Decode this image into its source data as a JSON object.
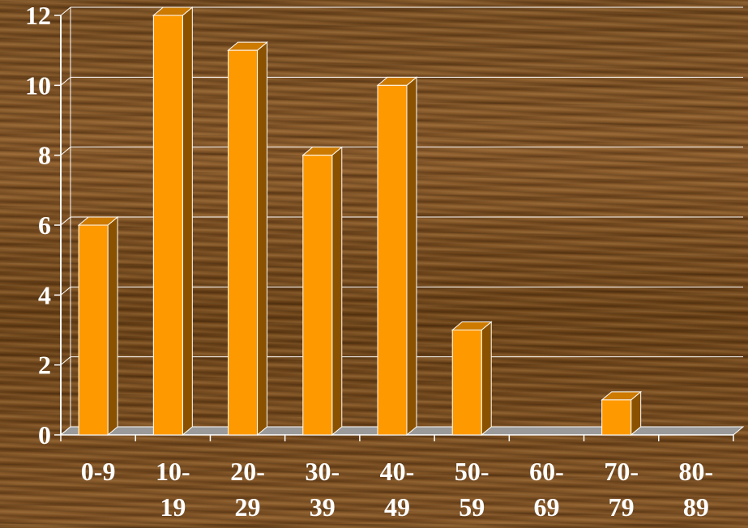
{
  "chart_data": {
    "type": "bar",
    "categories": [
      [
        "0-9"
      ],
      [
        "10-",
        "19"
      ],
      [
        "20-",
        "29"
      ],
      [
        "30-",
        "39"
      ],
      [
        "40-",
        "49"
      ],
      [
        "50-",
        "59"
      ],
      [
        "60-",
        "69"
      ],
      [
        "70-",
        "79"
      ],
      [
        "80-",
        "89"
      ]
    ],
    "values": [
      6,
      12,
      11,
      8,
      10,
      3,
      0,
      1,
      0
    ],
    "ylim": [
      0,
      12
    ],
    "yticks": [
      "0",
      "2",
      "4",
      "6",
      "8",
      "10",
      "12"
    ],
    "grid": true,
    "bar_style": "3d",
    "colors": {
      "bar_front": "#ff9900",
      "bar_side": "#8a5200",
      "bar_top": "#cc7a00",
      "bar_outline": "#ffffff",
      "grid": "#ffffff",
      "floor": "#9a9a9a",
      "text": "#ffffff"
    }
  }
}
